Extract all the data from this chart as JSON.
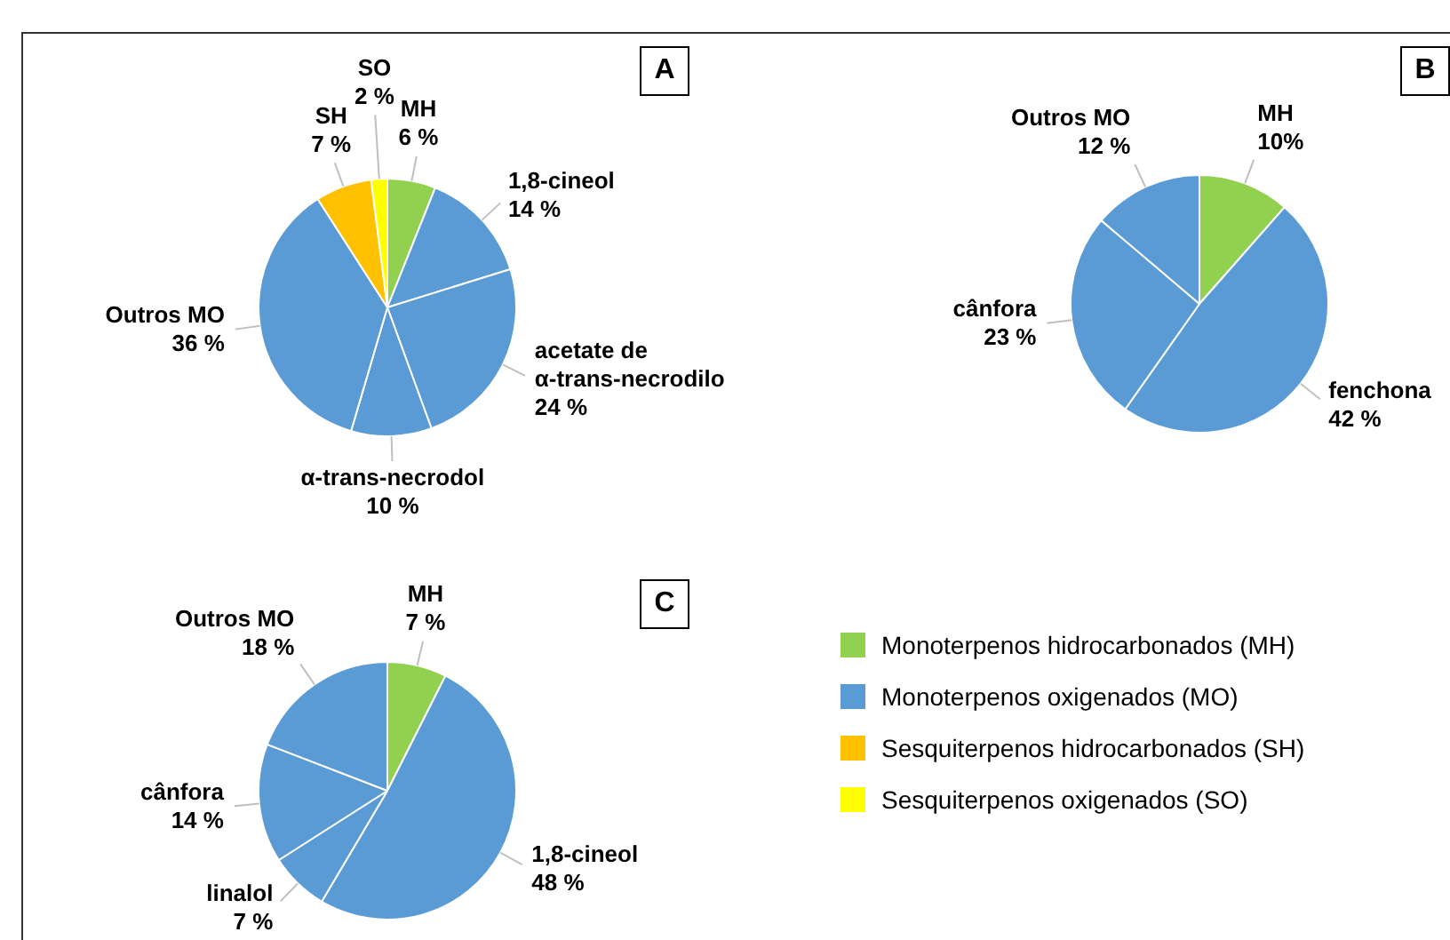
{
  "chart_data": [
    {
      "type": "pie",
      "title": "A",
      "categories": [
        "MH",
        "1,8-cineol",
        "acetate de α-trans-necrodilo",
        "α-trans-necrodol",
        "Outros MO",
        "SH",
        "SO"
      ],
      "values": [
        6,
        14,
        24,
        10,
        36,
        7,
        2
      ],
      "value_labels": [
        "6 %",
        "14 %",
        "24 %",
        "10 %",
        "36 %",
        "7 %",
        "2 %"
      ],
      "colors": [
        "#92d050",
        "#5b9bd5",
        "#5b9bd5",
        "#5b9bd5",
        "#5b9bd5",
        "#ffc000",
        "#ffff00"
      ]
    },
    {
      "type": "pie",
      "title": "B",
      "categories": [
        "MH",
        "fenchona",
        "cânfora",
        "Outros MO"
      ],
      "values": [
        10,
        42,
        23,
        12
      ],
      "value_labels": [
        "10%",
        "42 %",
        "23 %",
        "12 %"
      ],
      "colors": [
        "#92d050",
        "#5b9bd5",
        "#5b9bd5",
        "#5b9bd5"
      ]
    },
    {
      "type": "pie",
      "title": "C",
      "categories": [
        "MH",
        "1,8-cineol",
        "linalol",
        "cânfora",
        "Outros MO"
      ],
      "values": [
        7,
        48,
        7,
        14,
        18
      ],
      "value_labels": [
        "7 %",
        "48 %",
        "7 %",
        "14 %",
        "18 %"
      ],
      "colors": [
        "#92d050",
        "#5b9bd5",
        "#5b9bd5",
        "#5b9bd5",
        "#5b9bd5"
      ]
    },
    {
      "type": "other",
      "categories": [
        "Monoterpenos hidrocarbonados (MH)",
        "Monoterpenos oxigenados (MO)",
        "Sesquiterpenos hidrocarbonados (SH)",
        "Sesquiterpenos oxigenados (SO)"
      ],
      "colors": [
        "#92d050",
        "#5b9bd5",
        "#ffc000",
        "#ffff00"
      ]
    }
  ]
}
